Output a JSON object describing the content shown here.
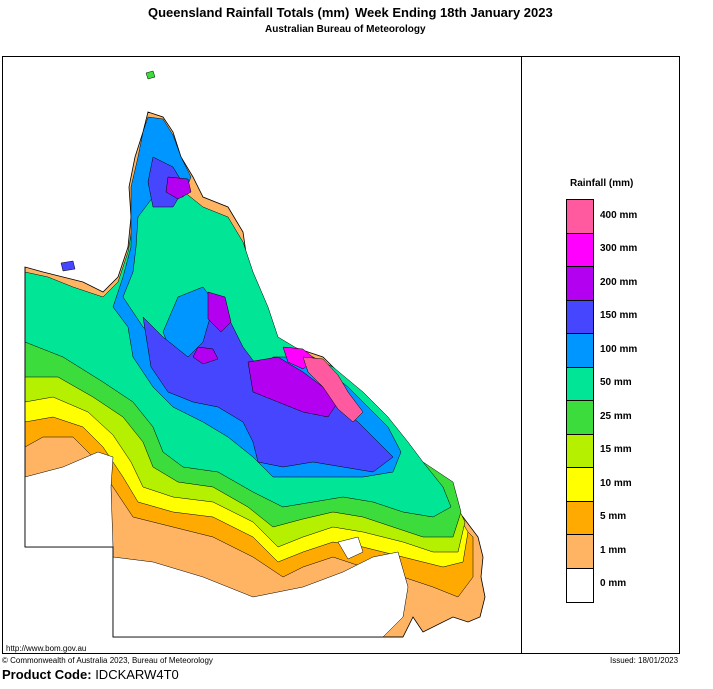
{
  "header": {
    "title": "Queensland Rainfall Totals (mm)",
    "period": "Week Ending 18th January 2023",
    "subtitle": "Australian Bureau of Meteorology"
  },
  "legend": {
    "title": "Rainfall (mm)",
    "classes": [
      {
        "label": "400 mm",
        "color": "#ff5aa0"
      },
      {
        "label": "300 mm",
        "color": "#ff00ff"
      },
      {
        "label": "200 mm",
        "color": "#b400f0"
      },
      {
        "label": "150 mm",
        "color": "#4646ff"
      },
      {
        "label": "100 mm",
        "color": "#0096ff"
      },
      {
        "label": "50 mm",
        "color": "#00e696"
      },
      {
        "label": "25 mm",
        "color": "#3cdc3c"
      },
      {
        "label": "15 mm",
        "color": "#b4f000"
      },
      {
        "label": "10 mm",
        "color": "#ffff00"
      },
      {
        "label": "5 mm",
        "color": "#ffaa00"
      },
      {
        "label": "1 mm",
        "color": "#ffb464"
      },
      {
        "label": "0 mm",
        "color": "#ffffff"
      }
    ]
  },
  "footer": {
    "url": "http://www.bom.gov.au",
    "copyright": "© Commonwealth of Australia 2023, Bureau of Meteorology",
    "issued": "Issued: 18/01/2023",
    "product_label": "Product Code:",
    "product_code": "IDCKARW4T0"
  }
}
